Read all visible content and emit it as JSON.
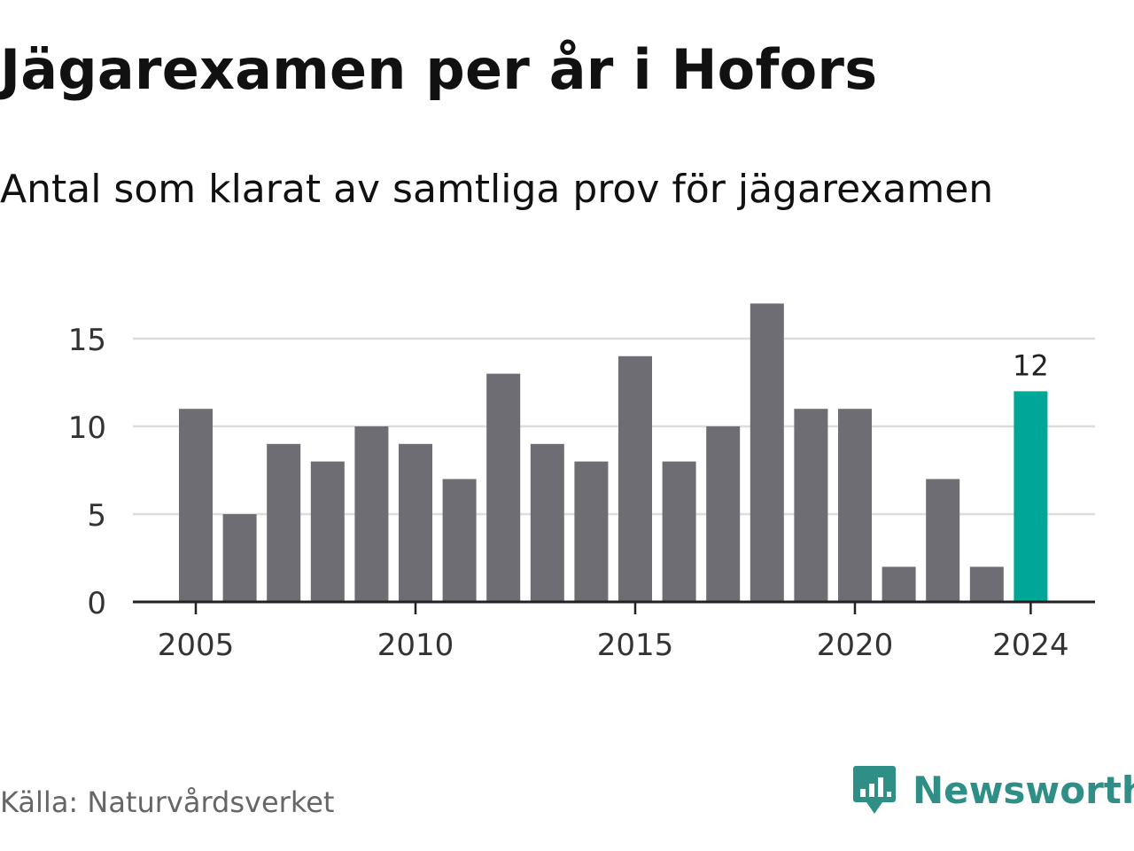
{
  "header": {
    "title": "Jägarexamen per år i Hofors",
    "subtitle": "Antal som klarat av samtliga prov för jägarexamen"
  },
  "footer": {
    "source": "Källa: Naturvårdsverket",
    "brand": "Newsworthy"
  },
  "colors": {
    "bar": "#6e6d73",
    "highlight": "#00a698",
    "grid": "#dddddd",
    "axis": "#222222",
    "brand": "#2f8f86"
  },
  "chart_data": {
    "type": "bar",
    "x": [
      2005,
      2006,
      2007,
      2008,
      2009,
      2010,
      2011,
      2012,
      2013,
      2014,
      2015,
      2016,
      2017,
      2018,
      2019,
      2020,
      2021,
      2022,
      2023,
      2024
    ],
    "values": [
      11,
      5,
      9,
      8,
      10,
      9,
      7,
      13,
      9,
      8,
      14,
      8,
      10,
      17,
      11,
      11,
      2,
      7,
      2,
      12
    ],
    "x_ticks": [
      "2005",
      "2010",
      "2015",
      "2020",
      "2024"
    ],
    "y_ticks": [
      "0",
      "5",
      "10",
      "15"
    ],
    "ylim": [
      0,
      17
    ],
    "grid": true,
    "highlight": {
      "x": 2024,
      "label": "12"
    }
  }
}
